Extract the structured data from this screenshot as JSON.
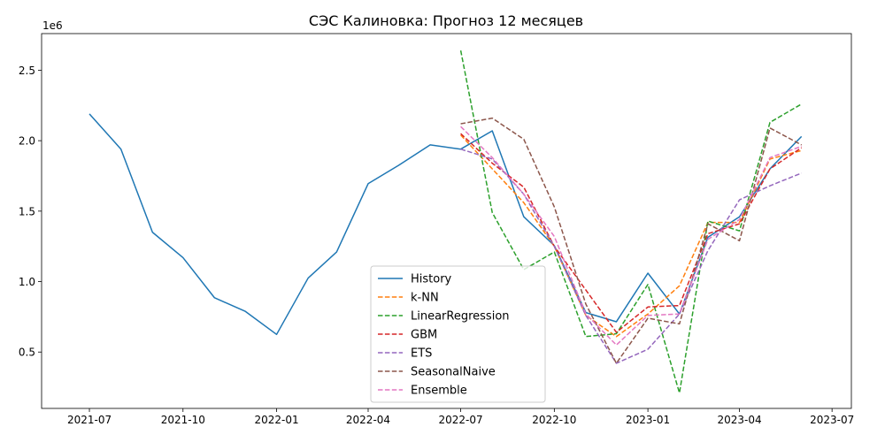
{
  "chart_data": {
    "type": "line",
    "title": "СЭС Калиновка: Прогноз 12 месяцев",
    "xlabel": "",
    "ylabel": "",
    "y_offset_label": "1e6",
    "x_range": [
      "2021-05-15",
      "2023-07-20"
    ],
    "y_range": [
      100000,
      2760000
    ],
    "x_ticks": [
      "2021-07-01",
      "2021-10-01",
      "2022-01-01",
      "2022-04-01",
      "2022-07-01",
      "2022-10-01",
      "2023-01-01",
      "2023-04-01",
      "2023-07-01"
    ],
    "x_tick_labels": [
      "2021-07",
      "2021-10",
      "2022-01",
      "2022-04",
      "2022-07",
      "2022-10",
      "2023-01",
      "2023-04",
      "2023-07"
    ],
    "y_ticks": [
      500000,
      1000000,
      1500000,
      2000000,
      2500000
    ],
    "y_tick_labels": [
      "0.5",
      "1.0",
      "1.5",
      "2.0",
      "2.5"
    ],
    "grid": false,
    "legend_position": "lower-center",
    "series": [
      {
        "name": "History",
        "color": "#1f77b4",
        "dash": "solid",
        "x": [
          "2021-07-01",
          "2021-08-01",
          "2021-09-01",
          "2021-10-01",
          "2021-11-01",
          "2021-12-01",
          "2022-01-01",
          "2022-02-01",
          "2022-03-01",
          "2022-04-01",
          "2022-05-01",
          "2022-06-01",
          "2022-07-01",
          "2022-08-01",
          "2022-09-01",
          "2022-10-01",
          "2022-11-01",
          "2022-12-01",
          "2023-01-01",
          "2023-02-01",
          "2023-03-01",
          "2023-04-01",
          "2023-05-01",
          "2023-06-01"
        ],
        "y": [
          2190000,
          1940000,
          1350000,
          1170000,
          885000,
          790000,
          625000,
          1025000,
          1210000,
          1695000,
          1825000,
          1970000,
          1940000,
          2070000,
          1460000,
          1255000,
          780000,
          715000,
          1060000,
          770000,
          1315000,
          1460000,
          1800000,
          2030000
        ]
      },
      {
        "name": "k-NN",
        "color": "#ff7f0e",
        "dash": "dashed",
        "x": [
          "2022-07-01",
          "2022-08-01",
          "2022-09-01",
          "2022-10-01",
          "2022-11-01",
          "2022-12-01",
          "2023-01-01",
          "2023-02-01",
          "2023-03-01",
          "2023-04-01",
          "2023-05-01",
          "2023-06-01"
        ],
        "y": [
          2040000,
          1800000,
          1560000,
          1250000,
          760000,
          610000,
          770000,
          970000,
          1420000,
          1420000,
          1870000,
          1930000
        ]
      },
      {
        "name": "LinearRegression",
        "color": "#2ca02c",
        "dash": "dashed",
        "x": [
          "2022-07-01",
          "2022-08-01",
          "2022-09-01",
          "2022-10-01",
          "2022-11-01",
          "2022-12-01",
          "2023-01-01",
          "2023-02-01",
          "2023-03-01",
          "2023-04-01",
          "2023-05-01",
          "2023-06-01"
        ],
        "y": [
          2640000,
          1490000,
          1085000,
          1210000,
          610000,
          630000,
          980000,
          210000,
          1430000,
          1360000,
          2130000,
          2260000
        ]
      },
      {
        "name": "GBM",
        "color": "#d62728",
        "dash": "dashed",
        "x": [
          "2022-07-01",
          "2022-08-01",
          "2022-09-01",
          "2022-10-01",
          "2022-11-01",
          "2022-12-01",
          "2023-01-01",
          "2023-02-01",
          "2023-03-01",
          "2023-04-01",
          "2023-05-01",
          "2023-06-01"
        ],
        "y": [
          2050000,
          1840000,
          1670000,
          1250000,
          940000,
          640000,
          820000,
          830000,
          1340000,
          1410000,
          1800000,
          1950000
        ]
      },
      {
        "name": "ETS",
        "color": "#9467bd",
        "dash": "dashed",
        "x": [
          "2022-07-01",
          "2022-08-01",
          "2022-09-01",
          "2022-10-01",
          "2022-11-01",
          "2022-12-01",
          "2023-01-01",
          "2023-02-01",
          "2023-03-01",
          "2023-04-01",
          "2023-05-01",
          "2023-06-01"
        ],
        "y": [
          1940000,
          1870000,
          1620000,
          1250000,
          760000,
          420000,
          520000,
          770000,
          1220000,
          1580000,
          1680000,
          1770000
        ]
      },
      {
        "name": "SeasonalNaive",
        "color": "#8c564b",
        "dash": "dashed",
        "x": [
          "2022-07-01",
          "2022-08-01",
          "2022-09-01",
          "2022-10-01",
          "2022-11-01",
          "2022-12-01",
          "2023-01-01",
          "2023-02-01",
          "2023-03-01",
          "2023-04-01",
          "2023-05-01",
          "2023-06-01"
        ],
        "y": [
          2120000,
          2160000,
          2010000,
          1530000,
          840000,
          420000,
          740000,
          700000,
          1410000,
          1290000,
          2090000,
          1970000
        ]
      },
      {
        "name": "Ensemble",
        "color": "#e377c2",
        "dash": "dashed",
        "x": [
          "2022-07-01",
          "2022-08-01",
          "2022-09-01",
          "2022-10-01",
          "2022-11-01",
          "2022-12-01",
          "2023-01-01",
          "2023-02-01",
          "2023-03-01",
          "2023-04-01",
          "2023-05-01",
          "2023-06-01"
        ],
        "y": [
          2100000,
          1880000,
          1620000,
          1320000,
          770000,
          550000,
          760000,
          770000,
          1300000,
          1440000,
          1880000,
          1960000
        ]
      }
    ]
  }
}
